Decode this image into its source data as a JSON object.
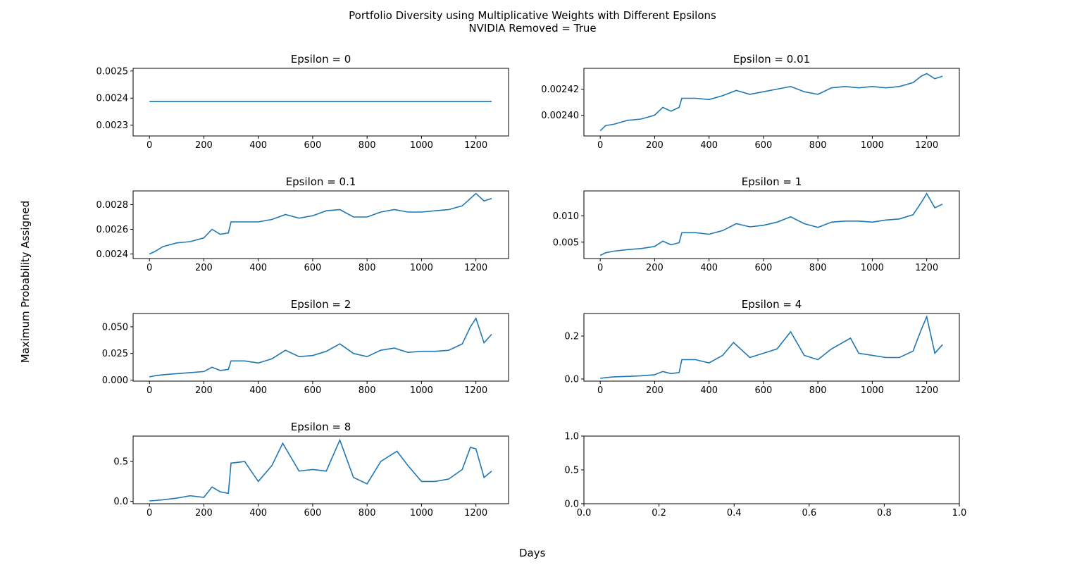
{
  "figure": {
    "title_line1": "Portfolio Diversity using Multiplicative Weights with Different Epsilons",
    "title_line2": "NVIDIA Removed = True",
    "ylabel": "Maximum Probability Assigned",
    "xlabel": "Days"
  },
  "colors": {
    "line": "#1f77b4",
    "axes": "#000000",
    "background": "#ffffff"
  },
  "chart_data": [
    {
      "type": "line",
      "title": "Epsilon = 0",
      "xlim": [
        -60,
        1320
      ],
      "ylim": [
        0.00226,
        0.00251
      ],
      "xticks": [
        0,
        200,
        400,
        600,
        800,
        1000,
        1200
      ],
      "xtick_labels": [
        "0",
        "200",
        "400",
        "600",
        "800",
        "1000",
        "1200"
      ],
      "yticks": [
        0.0023,
        0.0024,
        0.0025
      ],
      "ytick_labels": [
        "0.0023",
        "0.0024",
        "0.0025"
      ],
      "series": [
        {
          "x": [
            0,
            1258
          ],
          "y": [
            0.002387,
            0.002387
          ]
        }
      ]
    },
    {
      "type": "line",
      "title": "Epsilon = 0.01",
      "xlim": [
        -60,
        1320
      ],
      "ylim": [
        0.002384,
        0.002436
      ],
      "xticks": [
        0,
        200,
        400,
        600,
        800,
        1000,
        1200
      ],
      "xtick_labels": [
        "0",
        "200",
        "400",
        "600",
        "800",
        "1000",
        "1200"
      ],
      "yticks": [
        0.0024,
        0.00242
      ],
      "ytick_labels": [
        "0.00240",
        "0.00242"
      ],
      "series": [
        {
          "x": [
            0,
            20,
            50,
            100,
            150,
            200,
            230,
            260,
            290,
            300,
            350,
            400,
            450,
            500,
            550,
            600,
            650,
            700,
            750,
            800,
            850,
            900,
            950,
            1000,
            1050,
            1100,
            1150,
            1180,
            1200,
            1230,
            1258
          ],
          "y": [
            0.002388,
            0.002392,
            0.002393,
            0.002396,
            0.002397,
            0.0024,
            0.002406,
            0.002403,
            0.002406,
            0.002413,
            0.002413,
            0.002412,
            0.002415,
            0.002419,
            0.002416,
            0.002418,
            0.00242,
            0.002422,
            0.002418,
            0.002416,
            0.002421,
            0.002422,
            0.002421,
            0.002422,
            0.002421,
            0.002422,
            0.002425,
            0.00243,
            0.002432,
            0.002428,
            0.00243
          ]
        }
      ]
    },
    {
      "type": "line",
      "title": "Epsilon = 0.1",
      "xlim": [
        -60,
        1320
      ],
      "ylim": [
        0.002363,
        0.002911
      ],
      "xticks": [
        0,
        200,
        400,
        600,
        800,
        1000,
        1200
      ],
      "xtick_labels": [
        "0",
        "200",
        "400",
        "600",
        "800",
        "1000",
        "1200"
      ],
      "yticks": [
        0.0024,
        0.0026,
        0.0028
      ],
      "ytick_labels": [
        "0.0024",
        "0.0026",
        "0.0028"
      ],
      "series": [
        {
          "x": [
            0,
            20,
            50,
            100,
            150,
            200,
            230,
            260,
            290,
            300,
            350,
            400,
            450,
            500,
            550,
            600,
            650,
            700,
            750,
            800,
            850,
            900,
            950,
            1000,
            1050,
            1100,
            1150,
            1180,
            1200,
            1230,
            1258
          ],
          "y": [
            0.0024,
            0.00242,
            0.00246,
            0.00249,
            0.0025,
            0.00253,
            0.0026,
            0.00256,
            0.00257,
            0.00266,
            0.00266,
            0.00266,
            0.00268,
            0.00272,
            0.00269,
            0.00271,
            0.00275,
            0.00276,
            0.0027,
            0.0027,
            0.00274,
            0.00276,
            0.00274,
            0.00274,
            0.00275,
            0.00276,
            0.00279,
            0.00285,
            0.00289,
            0.00283,
            0.00285
          ]
        }
      ]
    },
    {
      "type": "line",
      "title": "Epsilon = 1",
      "xlim": [
        -60,
        1320
      ],
      "ylim": [
        0.0019,
        0.0147
      ],
      "xticks": [
        0,
        200,
        400,
        600,
        800,
        1000,
        1200
      ],
      "xtick_labels": [
        "0",
        "200",
        "400",
        "600",
        "800",
        "1000",
        "1200"
      ],
      "yticks": [
        0.005,
        0.01
      ],
      "ytick_labels": [
        "0.005",
        "0.010"
      ],
      "series": [
        {
          "x": [
            0,
            20,
            50,
            100,
            150,
            200,
            230,
            260,
            290,
            300,
            350,
            400,
            450,
            500,
            550,
            600,
            650,
            700,
            750,
            800,
            850,
            900,
            950,
            1000,
            1050,
            1100,
            1150,
            1180,
            1200,
            1230,
            1258
          ],
          "y": [
            0.0025,
            0.003,
            0.0033,
            0.0036,
            0.0038,
            0.0042,
            0.0052,
            0.0045,
            0.0049,
            0.0068,
            0.0068,
            0.0065,
            0.0072,
            0.0085,
            0.0079,
            0.0082,
            0.0088,
            0.0098,
            0.0085,
            0.0078,
            0.0088,
            0.009,
            0.009,
            0.0088,
            0.0092,
            0.0094,
            0.0102,
            0.0125,
            0.0142,
            0.0115,
            0.0122
          ]
        }
      ]
    },
    {
      "type": "line",
      "title": "Epsilon = 2",
      "xlim": [
        -60,
        1320
      ],
      "ylim": [
        -0.001,
        0.0625
      ],
      "xticks": [
        0,
        200,
        400,
        600,
        800,
        1000,
        1200
      ],
      "xtick_labels": [
        "0",
        "200",
        "400",
        "600",
        "800",
        "1000",
        "1200"
      ],
      "yticks": [
        0,
        0.025,
        0.05
      ],
      "ytick_labels": [
        "0.000",
        "0.025",
        "0.050"
      ],
      "series": [
        {
          "x": [
            0,
            20,
            50,
            100,
            150,
            200,
            230,
            260,
            290,
            300,
            350,
            400,
            450,
            500,
            550,
            600,
            650,
            700,
            750,
            800,
            850,
            900,
            950,
            1000,
            1050,
            1100,
            1150,
            1180,
            1200,
            1230,
            1258
          ],
          "y": [
            0.003,
            0.004,
            0.005,
            0.006,
            0.007,
            0.008,
            0.012,
            0.009,
            0.01,
            0.018,
            0.018,
            0.016,
            0.02,
            0.028,
            0.022,
            0.023,
            0.027,
            0.034,
            0.025,
            0.022,
            0.028,
            0.03,
            0.026,
            0.027,
            0.027,
            0.028,
            0.034,
            0.05,
            0.058,
            0.035,
            0.043
          ]
        }
      ]
    },
    {
      "type": "line",
      "title": "Epsilon = 4",
      "xlim": [
        -60,
        1320
      ],
      "ylim": [
        -0.01,
        0.305
      ],
      "xticks": [
        0,
        200,
        400,
        600,
        800,
        1000,
        1200
      ],
      "xtick_labels": [
        "0",
        "200",
        "400",
        "600",
        "800",
        "1000",
        "1200"
      ],
      "yticks": [
        0,
        0.2
      ],
      "ytick_labels": [
        "0.0",
        "0.2"
      ],
      "series": [
        {
          "x": [
            0,
            20,
            50,
            100,
            150,
            200,
            230,
            260,
            290,
            300,
            350,
            400,
            450,
            490,
            550,
            600,
            650,
            700,
            750,
            800,
            850,
            920,
            950,
            1000,
            1050,
            1100,
            1150,
            1180,
            1200,
            1230,
            1258
          ],
          "y": [
            0.003,
            0.006,
            0.01,
            0.012,
            0.015,
            0.02,
            0.035,
            0.025,
            0.03,
            0.09,
            0.09,
            0.075,
            0.11,
            0.17,
            0.1,
            0.12,
            0.14,
            0.22,
            0.11,
            0.09,
            0.14,
            0.19,
            0.12,
            0.11,
            0.1,
            0.1,
            0.13,
            0.23,
            0.29,
            0.12,
            0.16
          ]
        }
      ]
    },
    {
      "type": "line",
      "title": "Epsilon = 8",
      "xlim": [
        -60,
        1320
      ],
      "ylim": [
        -0.03,
        0.82
      ],
      "xticks": [
        0,
        200,
        400,
        600,
        800,
        1000,
        1200
      ],
      "xtick_labels": [
        "0",
        "200",
        "400",
        "600",
        "800",
        "1000",
        "1200"
      ],
      "yticks": [
        0,
        0.5
      ],
      "ytick_labels": [
        "0.0",
        "0.5"
      ],
      "series": [
        {
          "x": [
            0,
            20,
            50,
            100,
            150,
            200,
            230,
            260,
            290,
            300,
            350,
            400,
            450,
            490,
            550,
            600,
            650,
            700,
            750,
            800,
            850,
            910,
            950,
            1000,
            1050,
            1100,
            1150,
            1180,
            1200,
            1230,
            1258
          ],
          "y": [
            0.005,
            0.01,
            0.02,
            0.04,
            0.07,
            0.05,
            0.18,
            0.12,
            0.1,
            0.48,
            0.5,
            0.25,
            0.45,
            0.73,
            0.38,
            0.4,
            0.38,
            0.77,
            0.3,
            0.22,
            0.5,
            0.63,
            0.45,
            0.25,
            0.25,
            0.28,
            0.4,
            0.68,
            0.66,
            0.3,
            0.38
          ]
        }
      ]
    },
    {
      "type": "line",
      "title": "",
      "xlim": [
        0,
        1
      ],
      "ylim": [
        0,
        1
      ],
      "xticks": [
        0,
        0.2,
        0.4,
        0.6,
        0.8,
        1
      ],
      "xtick_labels": [
        "0.0",
        "0.2",
        "0.4",
        "0.6",
        "0.8",
        "1.0"
      ],
      "yticks": [
        0,
        0.5,
        1
      ],
      "ytick_labels": [
        "0.0",
        "0.5",
        "1.0"
      ],
      "series": []
    }
  ]
}
